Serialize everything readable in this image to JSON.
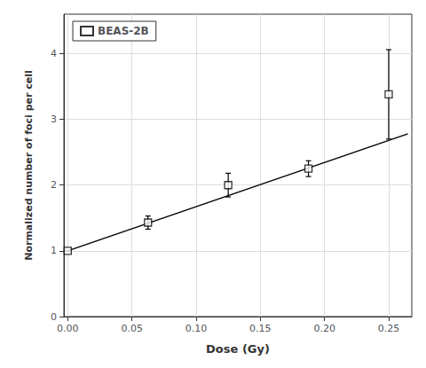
{
  "chart_data": {
    "type": "scatter",
    "xlabel": "Dose (Gy)",
    "ylabel": "Normalized number of foci per cell",
    "xlim": [
      -0.003,
      0.268
    ],
    "ylim": [
      0,
      4.6
    ],
    "xticks": [
      {
        "value": 0.0,
        "label": "0.00"
      },
      {
        "value": 0.05,
        "label": "0.05"
      },
      {
        "value": 0.1,
        "label": "0.10"
      },
      {
        "value": 0.15,
        "label": "0.15"
      },
      {
        "value": 0.2,
        "label": "0.20"
      },
      {
        "value": 0.25,
        "label": "0.25"
      }
    ],
    "yticks": [
      0,
      1,
      2,
      3,
      4
    ],
    "grid": true,
    "legend": "upper left",
    "series": [
      {
        "name": "BEAS-2B",
        "type": "scatter",
        "marker": "square",
        "color": "#000000",
        "x": [
          0.0,
          0.0625,
          0.125,
          0.1875,
          0.25
        ],
        "values": [
          1.0,
          1.43,
          2.0,
          2.25,
          3.38
        ],
        "yerr": [
          0.0,
          0.1,
          0.18,
          0.12,
          0.68
        ]
      },
      {
        "type": "line",
        "line_style": "solid",
        "color": "#000000",
        "x": [
          0.0,
          0.265
        ],
        "values": [
          1.0,
          2.7808
        ]
      }
    ]
  }
}
